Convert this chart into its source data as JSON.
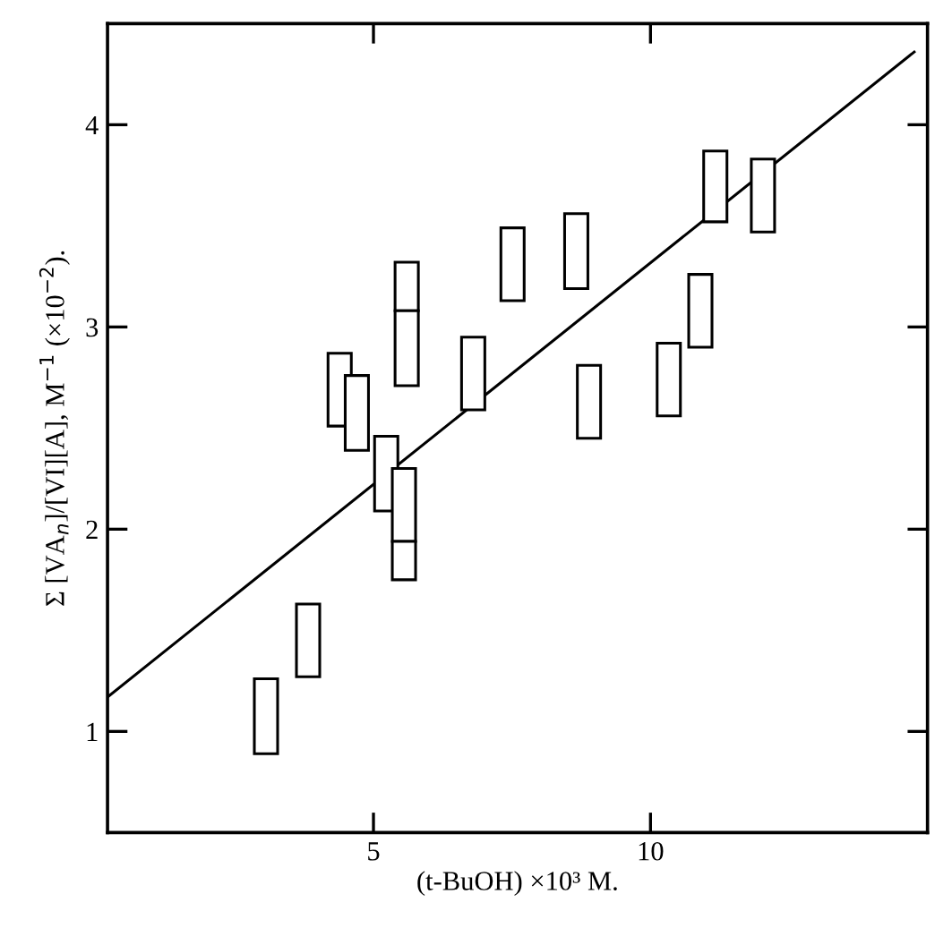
{
  "chart_data": {
    "type": "bar",
    "xlabel": "(t-BuOH) ×10³ M.",
    "ylabel": "Σ [VA$_{n}$]/[VI][A], M$^{−1}$ (×10$^{−2}$).",
    "xlim": [
      0.2,
      15
    ],
    "xticks": [
      5,
      10
    ],
    "ylim": [
      0.5,
      4.5
    ],
    "yticks": [
      1,
      2,
      3,
      4
    ],
    "grid": false,
    "legend": false,
    "series": [
      {
        "color": "#000000",
        "x": [
          3.06,
          3.82,
          4.39,
          4.7,
          5.23,
          5.55,
          5.6,
          6.8,
          7.51,
          8.66,
          8.89,
          10.33,
          10.9,
          11.17,
          12.03
        ],
        "base": [
          0.89,
          1.27,
          2.51,
          2.39,
          2.09,
          1.94,
          3.08,
          2.59,
          3.13,
          3.19,
          2.45,
          2.56,
          2.9,
          3.52,
          3.47
        ],
        "values": [
          0.37,
          0.36,
          0.36,
          0.37,
          0.37,
          0.36,
          0.24,
          0.36,
          0.36,
          0.37,
          0.36,
          0.36,
          0.36,
          0.35,
          0.36
        ]
      },
      {
        "color": "#000000",
        "x": [
          5.55,
          5.6
        ],
        "base": [
          1.75,
          2.71
        ],
        "values": [
          0.19,
          0.37
        ]
      },
      {
        "type": "line",
        "color": "#000000",
        "x": [
          0.2,
          14.76
        ],
        "values": [
          1.17,
          4.36
        ],
        "marker": "none",
        "line_style": "solid"
      }
    ]
  }
}
